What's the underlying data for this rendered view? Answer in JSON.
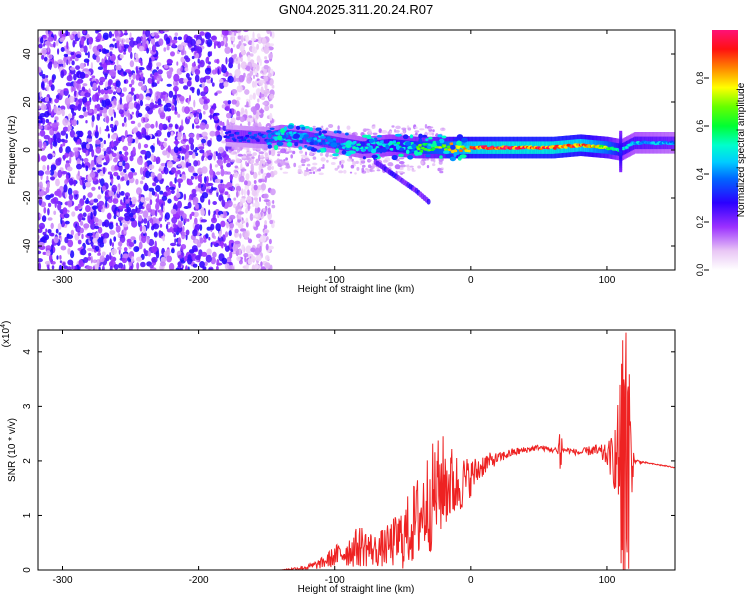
{
  "title": "GN04.2025.311.20.24.R07",
  "chart_data": [
    {
      "type": "heatmap",
      "xlabel": "Height of straight line (km)",
      "ylabel": "Frequency (Hz)",
      "xlim": [
        -318,
        150
      ],
      "ylim": [
        -50,
        50
      ],
      "x_ticks": [
        -300,
        -200,
        -100,
        0,
        100
      ],
      "y_ticks": [
        -40,
        -20,
        0,
        20,
        40
      ],
      "colorbar": {
        "label": "Normalized spectral amplitude",
        "range": [
          0,
          1
        ],
        "ticks": [
          "0.0",
          "0.2",
          "0.4",
          "0.6",
          "0.8"
        ]
      },
      "ridge": {
        "x": [
          -180,
          -150,
          -140,
          -120,
          -100,
          -80,
          -60,
          -40,
          -20,
          0,
          20,
          40,
          60,
          80,
          100,
          110,
          120,
          150
        ],
        "freq": [
          6,
          5,
          6,
          5,
          3,
          1,
          2,
          1,
          1,
          1,
          1,
          1,
          1,
          2,
          1,
          0,
          3,
          3
        ],
        "amplitude": [
          0.3,
          0.35,
          0.45,
          0.4,
          0.4,
          0.45,
          0.5,
          0.6,
          0.7,
          0.85,
          0.9,
          0.9,
          0.9,
          0.85,
          0.7,
          0.5,
          0.45,
          0.4
        ]
      },
      "branch": {
        "x": [
          -70,
          -60,
          -50,
          -40,
          -30
        ],
        "freq": [
          -5,
          -9,
          -13,
          -17,
          -22
        ]
      }
    },
    {
      "type": "line",
      "ylabel": "SNR (10 * v/v)",
      "y_multiplier_label": "(x10",
      "y_multiplier_exponent": "4",
      "xlabel": "Height of straight line (km)",
      "xlim": [
        -318,
        150
      ],
      "ylim": [
        0,
        4.4
      ],
      "x_ticks": [
        -300,
        -200,
        -100,
        0,
        100
      ],
      "y_ticks": [
        0,
        1,
        2,
        3,
        4
      ],
      "color": "#ee2222",
      "series": [
        {
          "x": [
            -318,
            -200,
            -140,
            -120,
            -110,
            -100,
            -90,
            -80,
            -70,
            -60,
            -50,
            -40,
            -30,
            -20,
            -10,
            0,
            10,
            20,
            30,
            40,
            50,
            60,
            70,
            80,
            90,
            100,
            105,
            110,
            113,
            116,
            120,
            130,
            140,
            150
          ],
          "values": [
            0.0,
            0.0,
            0.0,
            0.05,
            0.12,
            0.25,
            0.35,
            0.45,
            0.35,
            0.45,
            0.6,
            0.9,
            1.3,
            1.6,
            1.55,
            1.7,
            1.95,
            2.05,
            2.15,
            2.2,
            2.25,
            2.2,
            2.2,
            2.15,
            2.2,
            2.1,
            2.05,
            2.0,
            2.0,
            2.05,
            2.0,
            1.96,
            1.92,
            1.88
          ],
          "noise": [
            0,
            0,
            0,
            0.05,
            0.1,
            0.2,
            0.3,
            0.4,
            0.3,
            0.4,
            0.6,
            0.8,
            1.0,
            0.9,
            0.6,
            0.35,
            0.2,
            0.1,
            0.08,
            0.06,
            0.05,
            0.05,
            0.05,
            0.06,
            0.1,
            0.2,
            0.5,
            1.5,
            2.2,
            1.5,
            0.05,
            0.01,
            0.01,
            0.01
          ]
        }
      ]
    }
  ]
}
